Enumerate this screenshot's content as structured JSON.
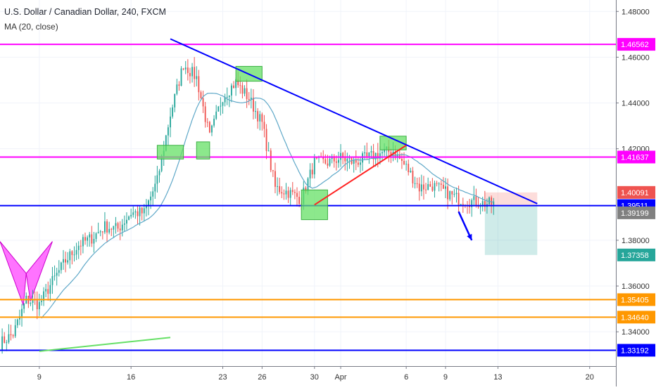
{
  "header": {
    "title": "U.S. Dollar / Canadian Dollar, 240, FXCM",
    "indicator": "MA (20, close)"
  },
  "chart_data": {
    "type": "candlestick",
    "symbol": "U.S. Dollar / Canadian Dollar",
    "timeframe": "240",
    "source": "FXCM",
    "ylim": [
      1.325,
      1.485
    ],
    "y_ticks": [
      "1.48000",
      "1.46000",
      "1.44000",
      "1.42000",
      "1.38000",
      "1.36000",
      "1.34000"
    ],
    "y_tick_values": [
      1.48,
      1.46,
      1.44,
      1.42,
      1.38,
      1.36,
      1.34
    ],
    "x_ticks": [
      "9",
      "16",
      "23",
      "26",
      "30",
      "Apr",
      "6",
      "9",
      "13",
      "20"
    ],
    "x_tick_dates": [
      "2020-03-09",
      "2020-03-16",
      "2020-03-23",
      "2020-03-26",
      "2020-03-30",
      "2020-04-01",
      "2020-04-06",
      "2020-04-09",
      "2020-04-13",
      "2020-04-20"
    ],
    "x_range": [
      "2020-03-06",
      "2020-04-22"
    ],
    "data_start": "2020-03-06",
    "data_end": "2020-04-12",
    "colors": {
      "up": "#26a69a",
      "down": "#ef5350",
      "ma": "#5fa8c8",
      "magenta": "#ff00ff",
      "blue": "#0000ff",
      "orange": "#ff9800",
      "green_box": "#66e066",
      "red_line": "#ff2222"
    },
    "price_anchors": [
      {
        "date": "2020-03-06",
        "close": 1.335
      },
      {
        "date": "2020-03-07",
        "close": 1.339
      },
      {
        "date": "2020-03-08",
        "close": 1.354
      },
      {
        "date": "2020-03-09",
        "close": 1.352
      },
      {
        "date": "2020-03-10",
        "close": 1.362
      },
      {
        "date": "2020-03-11",
        "close": 1.371
      },
      {
        "date": "2020-03-12",
        "close": 1.378
      },
      {
        "date": "2020-03-13",
        "close": 1.381
      },
      {
        "date": "2020-03-14",
        "close": 1.386
      },
      {
        "date": "2020-03-15",
        "close": 1.385
      },
      {
        "date": "2020-03-16",
        "close": 1.392
      },
      {
        "date": "2020-03-17",
        "close": 1.392
      },
      {
        "date": "2020-03-18",
        "close": 1.406
      },
      {
        "date": "2020-03-19",
        "close": 1.435
      },
      {
        "date": "2020-03-20",
        "close": 1.457
      },
      {
        "date": "2020-03-21",
        "close": 1.451
      },
      {
        "date": "2020-03-22",
        "close": 1.425
      },
      {
        "date": "2020-03-23",
        "close": 1.443
      },
      {
        "date": "2020-03-24",
        "close": 1.449
      },
      {
        "date": "2020-03-25",
        "close": 1.442
      },
      {
        "date": "2020-03-26",
        "close": 1.431
      },
      {
        "date": "2020-03-27",
        "close": 1.403
      },
      {
        "date": "2020-03-28",
        "close": 1.401
      },
      {
        "date": "2020-03-29",
        "close": 1.398
      },
      {
        "date": "2020-03-30",
        "close": 1.414
      },
      {
        "date": "2020-03-31",
        "close": 1.414
      },
      {
        "date": "2020-04-01",
        "close": 1.416
      },
      {
        "date": "2020-04-02",
        "close": 1.414
      },
      {
        "date": "2020-04-03",
        "close": 1.416
      },
      {
        "date": "2020-04-04",
        "close": 1.418
      },
      {
        "date": "2020-04-05",
        "close": 1.419
      },
      {
        "date": "2020-04-06",
        "close": 1.412
      },
      {
        "date": "2020-04-07",
        "close": 1.403
      },
      {
        "date": "2020-04-08",
        "close": 1.404
      },
      {
        "date": "2020-04-09",
        "close": 1.401
      },
      {
        "date": "2020-04-10",
        "close": 1.398
      },
      {
        "date": "2020-04-11",
        "close": 1.397
      },
      {
        "date": "2020-04-12",
        "close": 1.396
      }
    ],
    "ma_period": 20,
    "horizontal_lines": [
      {
        "price": 1.46562,
        "label": "1.46562",
        "color": "#ff00ff",
        "label_bg": "#ff00ff"
      },
      {
        "price": 1.41637,
        "label": "1.41637",
        "color": "#ff00ff",
        "label_bg": "#ff00ff"
      },
      {
        "price": 1.39515,
        "label": "1.39515",
        "color": "#0000ff",
        "label_bg": "#0000ff"
      },
      {
        "price": 1.35405,
        "label": "1.35405",
        "color": "#ff9800",
        "label_bg": "#ff9800"
      },
      {
        "price": 1.3464,
        "label": "1.34640",
        "color": "#ff9800",
        "label_bg": "#ff9800"
      },
      {
        "price": 1.33192,
        "label": "1.33192",
        "color": "#0000ff",
        "label_bg": "#0000ff"
      }
    ],
    "price_labels": [
      {
        "price": 1.40091,
        "label": "1.40091",
        "bg": "#ef5350"
      },
      {
        "price": 1.39511,
        "label": "1.39511",
        "bg": "#0000ff"
      },
      {
        "price": 1.39199,
        "label": "1.39199",
        "bg": "#808080"
      },
      {
        "price": 1.37358,
        "label": "1.37358",
        "bg": "#26a69a"
      }
    ],
    "trendlines": [
      {
        "name": "descending-resistance",
        "color": "#0000ff",
        "from": {
          "date": "2020-03-19",
          "price": 1.468
        },
        "to": {
          "date": "2020-04-16",
          "price": 1.396
        }
      },
      {
        "name": "ascending-support",
        "color": "#ff2222",
        "from": {
          "date": "2020-03-30",
          "price": 1.3955
        },
        "to": {
          "date": "2020-04-06",
          "price": 1.4215
        }
      },
      {
        "name": "lower-support",
        "color": "#66e066",
        "from": {
          "date": "2020-03-09",
          "price": 1.3315
        },
        "to": {
          "date": "2020-03-19",
          "price": 1.3375
        }
      }
    ],
    "highlight_boxes": [
      {
        "from": "2020-03-18",
        "to": "2020-03-20",
        "low": 1.4155,
        "high": 1.4215
      },
      {
        "from": "2020-03-21",
        "to": "2020-03-22",
        "low": 1.4155,
        "high": 1.423
      },
      {
        "from": "2020-03-24",
        "to": "2020-03-26",
        "low": 1.4495,
        "high": 1.456
      },
      {
        "from": "2020-03-29",
        "to": "2020-03-31",
        "low": 1.389,
        "high": 1.402
      },
      {
        "from": "2020-04-04",
        "to": "2020-04-06",
        "low": 1.4195,
        "high": 1.4255
      }
    ],
    "position": {
      "from": "2020-04-12",
      "to": "2020-04-16",
      "entry": 1.39511,
      "stop": 1.40091,
      "target": 1.37358
    },
    "harmonic_pattern": {
      "from": "2020-03-06",
      "to": "2020-03-10",
      "high": 1.3795,
      "low": 1.3515
    },
    "arrow": {
      "from": {
        "date": "2020-04-10",
        "price": 1.3925
      },
      "to": {
        "date": "2020-04-11",
        "price": 1.38
      }
    }
  }
}
